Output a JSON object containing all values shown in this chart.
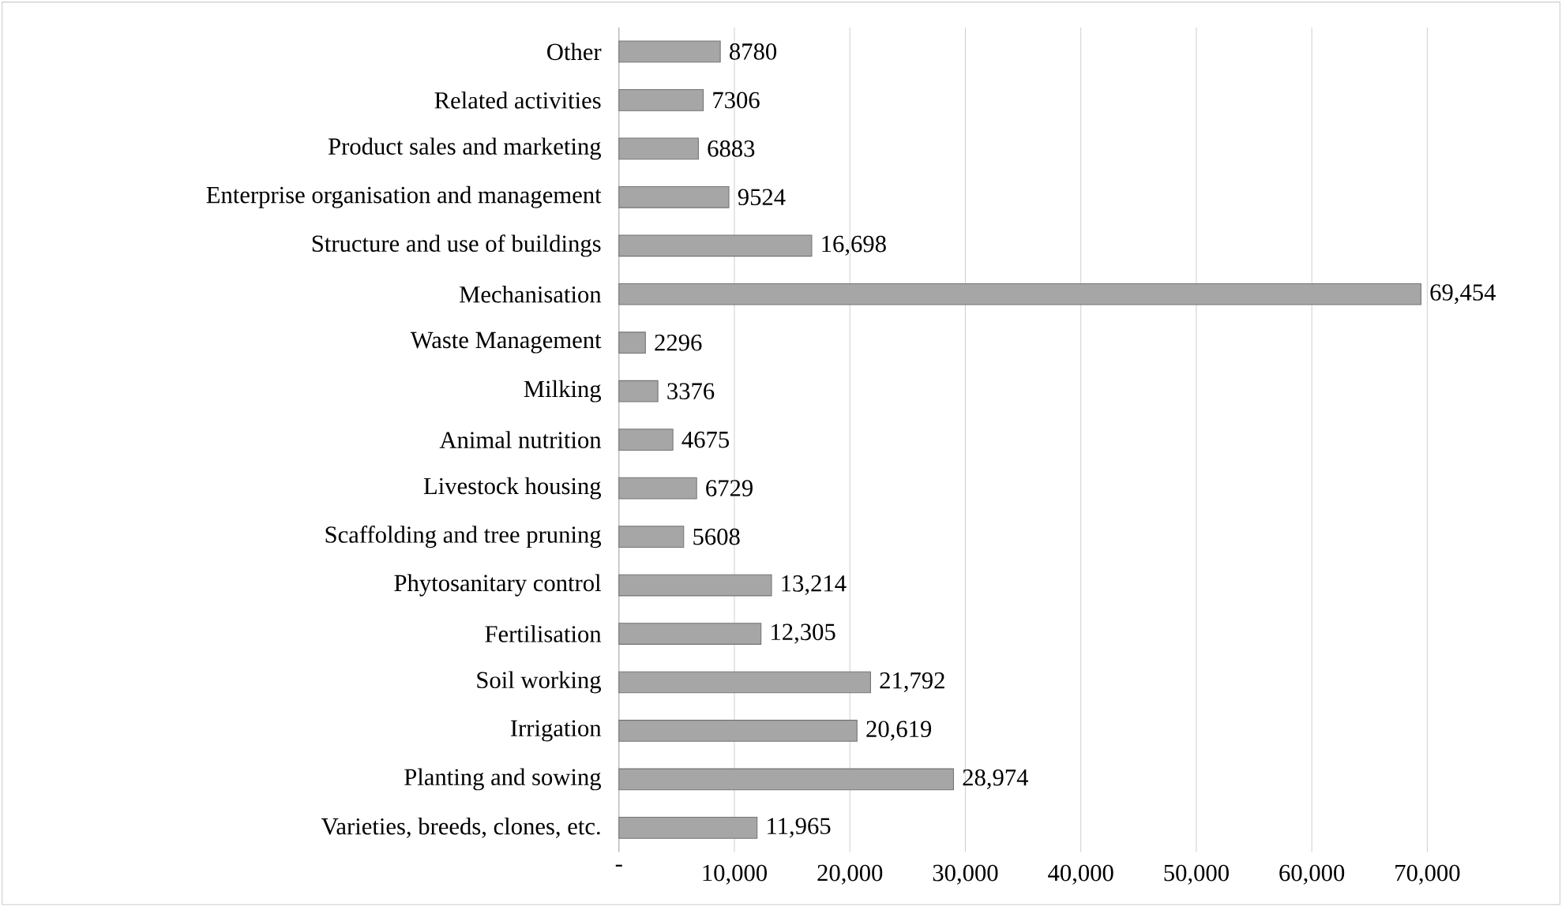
{
  "chart_data": {
    "type": "bar",
    "orientation": "horizontal",
    "categories": [
      "Other",
      "Related activities",
      "Product sales and marketing",
      "Enterprise organisation and management",
      "Structure and use of buildings",
      "Mechanisation",
      "Waste Management",
      "Milking",
      "Animal nutrition",
      "Livestock housing",
      "Scaffolding and tree pruning",
      "Phytosanitary control",
      "Fertilisation",
      "Soil working",
      "Irrigation",
      "Planting and sowing",
      "Varieties, breeds, clones, etc."
    ],
    "values": [
      8780,
      7306,
      6883,
      9524,
      16698,
      69454,
      2296,
      3376,
      4675,
      6729,
      5608,
      13214,
      12305,
      21792,
      20619,
      28974,
      11965
    ],
    "value_labels": [
      "8780",
      "7306",
      "6883",
      "9524",
      "16,698",
      "69,454",
      "2296",
      "3376",
      "4675",
      "6729",
      "5608",
      "13,214",
      "12,305",
      "21,792",
      "20,619",
      "28,974",
      "11,965"
    ],
    "color": "#a6a6a6",
    "xlim": [
      0,
      70000
    ],
    "xticks": [
      {
        "value": 0,
        "label": "-"
      },
      {
        "value": 10000,
        "label": "10,000"
      },
      {
        "value": 20000,
        "label": "20,000"
      },
      {
        "value": 30000,
        "label": "30,000"
      },
      {
        "value": 40000,
        "label": "40,000"
      },
      {
        "value": 50000,
        "label": "50,000"
      },
      {
        "value": 60000,
        "label": "60,000"
      },
      {
        "value": 70000,
        "label": "70,000"
      }
    ],
    "grid": "x"
  }
}
